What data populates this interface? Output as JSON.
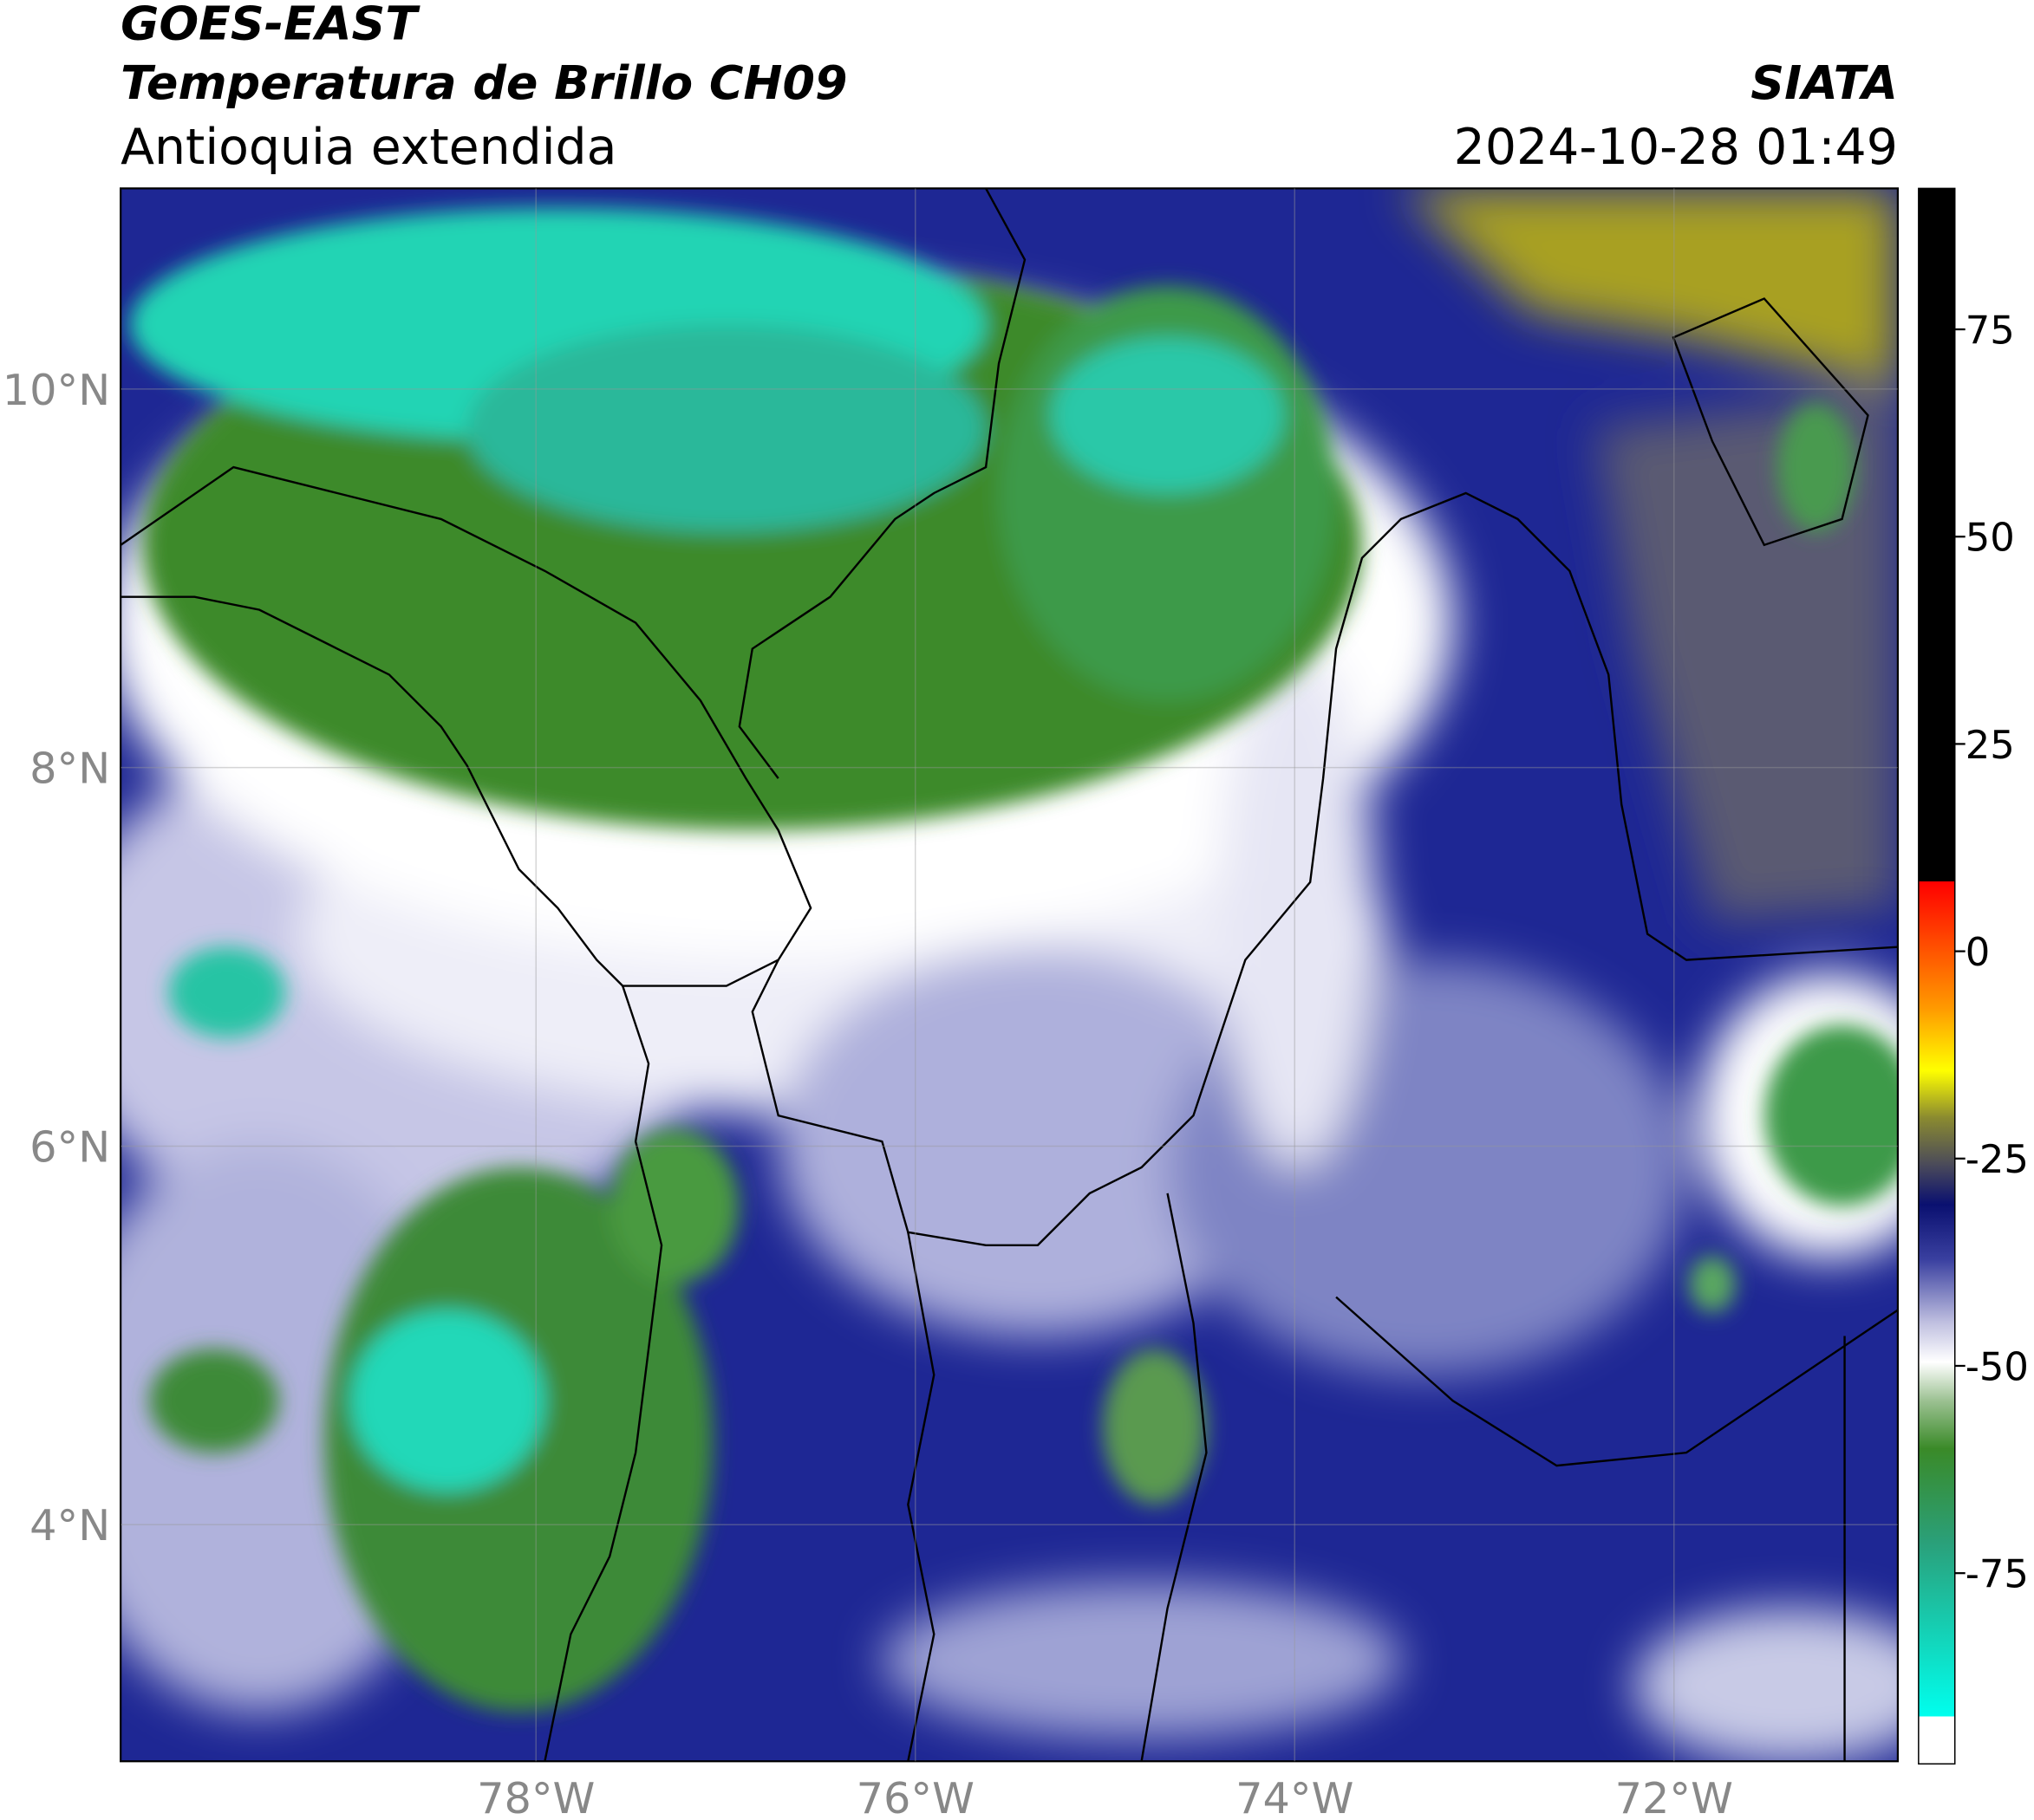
{
  "header": {
    "title": "GOES-EAST",
    "subtitle": "Temperatura de Brillo CH09",
    "region": "Antioquia extendida",
    "source": "SIATA",
    "timestamp": "2024-10-28 01:49"
  },
  "map": {
    "type": "map",
    "lat_range": [
      2.75,
      11.06
    ],
    "lon_range": [
      -80.19,
      -70.82
    ],
    "lat_ticks": [
      {
        "value": 10,
        "label": "10°N"
      },
      {
        "value": 8,
        "label": "8°N"
      },
      {
        "value": 6,
        "label": "6°N"
      },
      {
        "value": 4,
        "label": "4°N"
      }
    ],
    "lon_ticks": [
      {
        "value": -78,
        "label": "78°W"
      },
      {
        "value": -76,
        "label": "76°W"
      },
      {
        "value": -74,
        "label": "74°W"
      },
      {
        "value": -72,
        "label": "72°W"
      }
    ],
    "grid": true
  },
  "colorbar": {
    "range": [
      -98,
      92
    ],
    "ticks": [
      75,
      50,
      25,
      0,
      -25,
      -50,
      -75
    ]
  }
}
